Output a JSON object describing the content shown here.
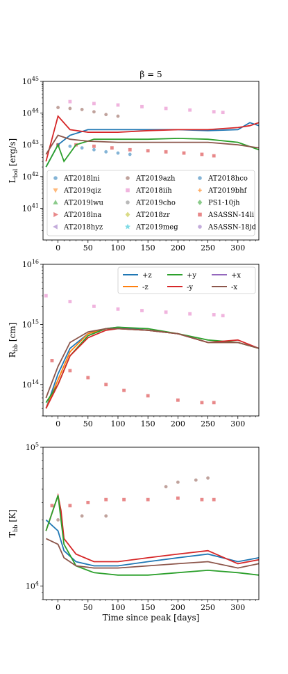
{
  "chart_data": [
    {
      "type": "scatter",
      "title": "β = 5",
      "xlabel": "",
      "ylabel": "L_bol [erg/s]",
      "yscale": "log",
      "ylim": [
        1e+40,
        1e+45
      ],
      "xlim": [
        -25,
        335
      ],
      "yticks": [
        "10^41",
        "10^42",
        "10^43",
        "10^44",
        "10^45"
      ],
      "xticks": [
        "0",
        "50",
        "100",
        "150",
        "200",
        "250",
        "300"
      ],
      "legend_position": "lower center",
      "legend": [
        "AT2018lni",
        "AT2019azh",
        "AT2018hco",
        "AT2019qiz",
        "AT2018iih",
        "AT2019bhf",
        "AT2019lwu",
        "AT2019cho",
        "PS1-10jh",
        "AT2018lna",
        "AT2018zr",
        "ASASSN-14li",
        "AT2018hyz",
        "AT2019meg",
        "ASASSN-18jd"
      ],
      "series": [
        {
          "name": "AT2018lni",
          "x": [
            0,
            20,
            40,
            60,
            80,
            100,
            120
          ],
          "y": [
            1e+43,
            9e+42,
            8e+42,
            7e+42,
            6e+42,
            5.5e+42,
            5e+42
          ]
        },
        {
          "name": "AT2019azh",
          "x": [
            0,
            20,
            40,
            60,
            80,
            100
          ],
          "y": [
            1.5e+44,
            1.4e+44,
            1.3e+44,
            1.1e+44,
            9e+43,
            8e+43
          ]
        },
        {
          "name": "AT2018iih",
          "x": [
            20,
            60,
            100,
            140,
            180,
            220,
            260,
            275
          ],
          "y": [
            2.3e+44,
            2e+44,
            1.8e+44,
            1.6e+44,
            1.4e+44,
            1.25e+44,
            1.1e+44,
            1.05e+44
          ]
        },
        {
          "name": "ASASSN-14li",
          "x": [
            0,
            30,
            60,
            90,
            120,
            150,
            180,
            210,
            240,
            260
          ],
          "y": [
            1e+43,
            1e+43,
            9e+42,
            8e+42,
            7e+42,
            6.5e+42,
            6e+42,
            5.5e+42,
            5e+42,
            4.5e+42
          ]
        },
        {
          "name": "+z",
          "x": [
            -20,
            0,
            20,
            50,
            100,
            150,
            200,
            250,
            300,
            320,
            335
          ],
          "y": [
            2e+42,
            1e+43,
            2e+43,
            3e+43,
            3e+43,
            3e+43,
            3e+43,
            2.8e+43,
            3e+43,
            5e+43,
            4e+43
          ]
        },
        {
          "name": "-y",
          "x": [
            -20,
            0,
            20,
            50,
            100,
            150,
            200,
            250,
            300,
            320,
            335
          ],
          "y": [
            3e+42,
            8e+43,
            3e+43,
            2.5e+43,
            2.5e+43,
            2.8e+43,
            3e+43,
            3e+43,
            3.5e+43,
            4e+43,
            5e+43
          ]
        },
        {
          "name": "+y",
          "x": [
            -20,
            0,
            10,
            30,
            60,
            100,
            150,
            200,
            250,
            300,
            335
          ],
          "y": [
            2e+42,
            1e+43,
            3e+42,
            1e+43,
            1.5e+43,
            1.5e+43,
            1.5e+43,
            1.6e+43,
            1.5e+43,
            1.2e+43,
            7e+42
          ]
        },
        {
          "name": "-x",
          "x": [
            -20,
            0,
            20,
            50,
            100,
            150,
            200,
            250,
            300,
            335
          ],
          "y": [
            5e+42,
            2e+43,
            1.5e+43,
            1.3e+43,
            1.2e+43,
            1.2e+43,
            1.2e+43,
            1.2e+43,
            1e+43,
            8e+42
          ]
        }
      ]
    },
    {
      "type": "scatter",
      "xlabel": "",
      "ylabel": "R_bb [cm]",
      "yscale": "log",
      "ylim": [
        30000000000000.0,
        1e+16
      ],
      "xlim": [
        -25,
        335
      ],
      "yticks": [
        "10^14",
        "10^15",
        "10^16"
      ],
      "xticks": [
        "0",
        "50",
        "100",
        "150",
        "200",
        "250",
        "300"
      ],
      "legend_position": "upper right",
      "legend": [
        "+z",
        "+y",
        "+x",
        "-z",
        "-y",
        "-x"
      ],
      "series": [
        {
          "name": "+z",
          "x": [
            -20,
            0,
            20,
            50,
            80,
            100,
            150,
            200,
            250,
            300,
            335
          ],
          "y": [
            40000000000000.0,
            150000000000000.0,
            400000000000000.0,
            700000000000000.0,
            850000000000000.0,
            900000000000000.0,
            800000000000000.0,
            700000000000000.0,
            500000000000000.0,
            500000000000000.0,
            400000000000000.0
          ]
        },
        {
          "name": "-z",
          "x": [
            -20,
            0,
            20,
            50,
            80,
            100,
            150,
            200,
            250,
            300,
            335
          ],
          "y": [
            40000000000000.0,
            120000000000000.0,
            350000000000000.0,
            700000000000000.0,
            850000000000000.0,
            850000000000000.0,
            800000000000000.0,
            700000000000000.0,
            500000000000000.0,
            500000000000000.0,
            400000000000000.0
          ]
        },
        {
          "name": "+y",
          "x": [
            -20,
            0,
            20,
            50,
            80,
            100,
            150,
            200,
            250,
            300,
            335
          ],
          "y": [
            50000000000000.0,
            100000000000000.0,
            300000000000000.0,
            650000000000000.0,
            850000000000000.0,
            900000000000000.0,
            850000000000000.0,
            700000000000000.0,
            550000000000000.0,
            500000000000000.0,
            400000000000000.0
          ]
        },
        {
          "name": "-y",
          "x": [
            -20,
            0,
            20,
            50,
            80,
            100,
            150,
            200,
            250,
            300,
            335
          ],
          "y": [
            40000000000000.0,
            100000000000000.0,
            300000000000000.0,
            600000000000000.0,
            800000000000000.0,
            850000000000000.0,
            800000000000000.0,
            700000000000000.0,
            500000000000000.0,
            550000000000000.0,
            400000000000000.0
          ]
        },
        {
          "name": "-x",
          "x": [
            -20,
            0,
            20,
            50,
            80,
            100,
            150,
            200,
            250,
            300,
            335
          ],
          "y": [
            60000000000000.0,
            200000000000000.0,
            500000000000000.0,
            750000000000000.0,
            850000000000000.0,
            850000000000000.0,
            800000000000000.0,
            700000000000000.0,
            500000000000000.0,
            500000000000000.0,
            400000000000000.0
          ]
        },
        {
          "name": "AT2018iih",
          "x": [
            -20,
            20,
            60,
            100,
            140,
            180,
            220,
            260,
            275
          ],
          "y": [
            3000000000000000.0,
            2400000000000000.0,
            2000000000000000.0,
            1800000000000000.0,
            1700000000000000.0,
            1600000000000000.0,
            1500000000000000.0,
            1450000000000000.0,
            1400000000000000.0
          ]
        },
        {
          "name": "ASASSN-14li",
          "x": [
            -10,
            20,
            50,
            80,
            110,
            150,
            200,
            240,
            260
          ],
          "y": [
            250000000000000.0,
            170000000000000.0,
            130000000000000.0,
            100000000000000.0,
            80000000000000.0,
            65000000000000.0,
            55000000000000.0,
            50000000000000.0,
            50000000000000.0
          ]
        }
      ]
    },
    {
      "type": "scatter",
      "xlabel": "Time since peak [days]",
      "ylabel": "T_bb [K]",
      "yscale": "log",
      "ylim": [
        8000,
        100000
      ],
      "xlim": [
        -25,
        335
      ],
      "yticks": [
        "10^4",
        "10^5"
      ],
      "xticks": [
        "0",
        "50",
        "100",
        "150",
        "200",
        "250",
        "300"
      ],
      "series": [
        {
          "name": "+z",
          "x": [
            -20,
            0,
            10,
            30,
            60,
            100,
            150,
            200,
            250,
            300,
            335
          ],
          "y": [
            30000,
            25000,
            18000,
            15000,
            14000,
            14000,
            15000,
            16000,
            17000,
            15000,
            16000
          ]
        },
        {
          "name": "-y",
          "x": [
            -20,
            0,
            5,
            10,
            30,
            60,
            100,
            150,
            200,
            250,
            300,
            335
          ],
          "y": [
            25000,
            45000,
            35000,
            22000,
            17000,
            15000,
            15000,
            16000,
            17000,
            18000,
            14500,
            15500
          ]
        },
        {
          "name": "+y",
          "x": [
            -20,
            0,
            10,
            30,
            60,
            100,
            150,
            200,
            250,
            300,
            335
          ],
          "y": [
            25000,
            45000,
            20000,
            14000,
            12500,
            12000,
            12000,
            12500,
            13000,
            12500,
            12000
          ]
        },
        {
          "name": "-x",
          "x": [
            -20,
            0,
            10,
            30,
            60,
            100,
            150,
            200,
            250,
            300,
            335
          ],
          "y": [
            22000,
            20000,
            16000,
            14000,
            13500,
            13500,
            14000,
            14500,
            15000,
            13500,
            14500
          ]
        },
        {
          "name": "ASASSN-14li",
          "x": [
            -10,
            20,
            50,
            80,
            110,
            150,
            200,
            240,
            260
          ],
          "y": [
            38000,
            38000,
            40000,
            42000,
            42000,
            42000,
            43000,
            42000,
            42000
          ]
        },
        {
          "name": "AT2019azh",
          "x": [
            0,
            40,
            80,
            180,
            200,
            230,
            250
          ],
          "y": [
            30000,
            32000,
            32000,
            52000,
            56000,
            58000,
            60000
          ]
        }
      ]
    }
  ]
}
